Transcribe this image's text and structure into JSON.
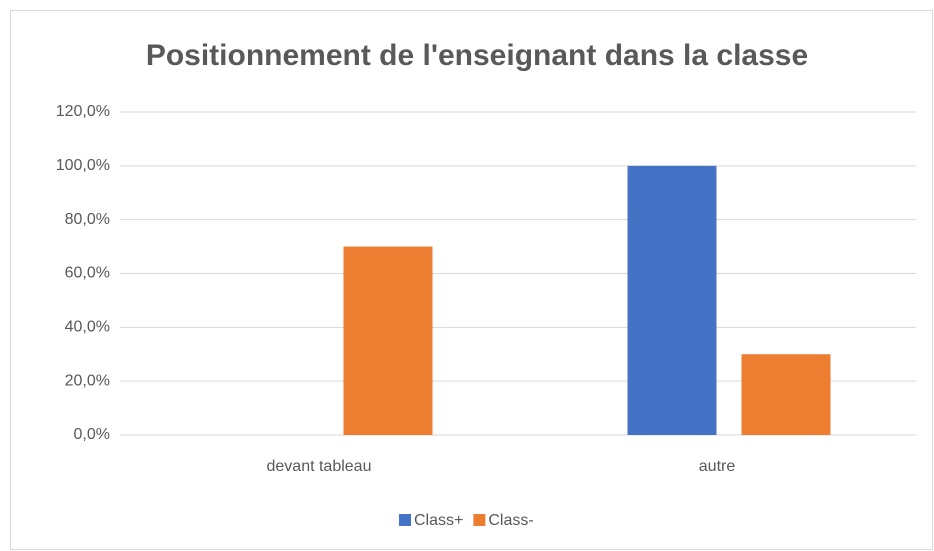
{
  "chart_data": {
    "type": "bar",
    "title": "Positionnement de l'enseignant dans la classe",
    "categories": [
      "devant tableau",
      "autre"
    ],
    "series": [
      {
        "name": "Class+",
        "color": "#4472c4",
        "values": [
          0,
          100
        ]
      },
      {
        "name": "Class-",
        "color": "#ed7d31",
        "values": [
          70,
          30
        ]
      }
    ],
    "ylim": [
      0,
      120
    ],
    "yticks": [
      {
        "value": 0,
        "label": "0,0%"
      },
      {
        "value": 20,
        "label": "20,0%"
      },
      {
        "value": 40,
        "label": "40,0%"
      },
      {
        "value": 60,
        "label": "60,0%"
      },
      {
        "value": 80,
        "label": "80,0%"
      },
      {
        "value": 100,
        "label": "100,0%"
      },
      {
        "value": 120,
        "label": "120,0%"
      }
    ],
    "grid": true,
    "legend": "bottom"
  }
}
